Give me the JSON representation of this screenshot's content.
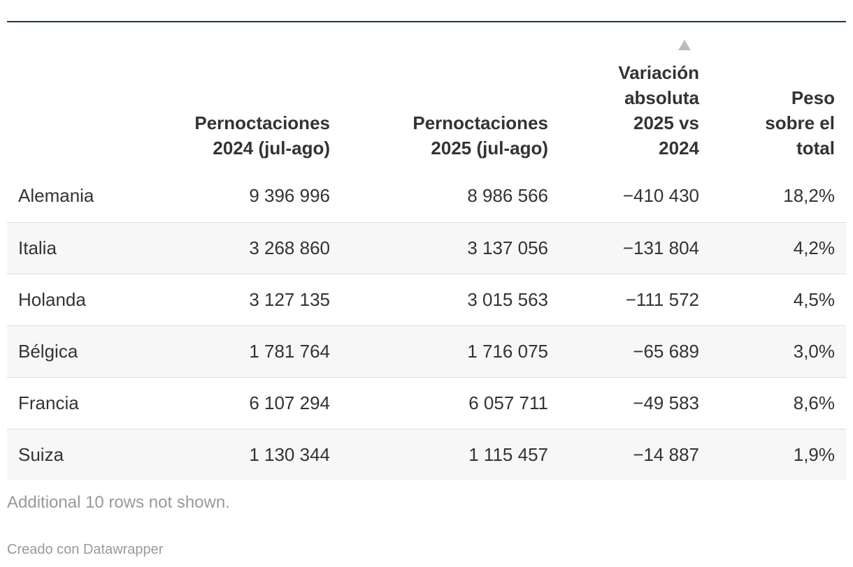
{
  "table": {
    "headers": [
      "",
      "Pernoctaciones 2024 (jul-ago)",
      "Pernoctaciones 2025 (jul-ago)",
      "Variación absoluta 2025 vs 2024",
      "Peso sobre el total"
    ],
    "rows": [
      [
        "Alemania",
        "9 396 996",
        "8 986 566",
        "−410 430",
        "18,2%"
      ],
      [
        "Italia",
        "3 268 860",
        "3 137 056",
        "−131 804",
        "4,2%"
      ],
      [
        "Holanda",
        "3 127 135",
        "3 015 563",
        "−111 572",
        "4,5%"
      ],
      [
        "Bélgica",
        "1 781 764",
        "1 716 075",
        "−65 689",
        "3,0%"
      ],
      [
        "Francia",
        "6 107 294",
        "6 057 711",
        "−49 583",
        "8,6%"
      ],
      [
        "Suiza",
        "1 130 344",
        "1 115 457",
        "−14 887",
        "1,9%"
      ]
    ]
  },
  "notes": "Additional 10 rows not shown.",
  "footer": "Creado con Datawrapper"
}
